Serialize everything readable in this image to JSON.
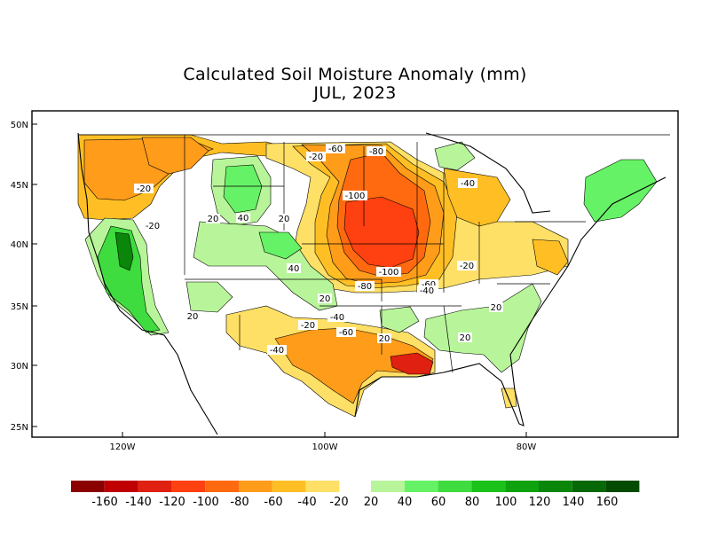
{
  "title": "Calculated Soil Moisture Anomaly (mm)",
  "subtitle": "JUL, 2023",
  "lat_labels": [
    "50N",
    "45N",
    "40N",
    "35N",
    "30N",
    "25N"
  ],
  "lon_labels": [
    "120W",
    "100W",
    "80W"
  ],
  "contour_labels": [
    "-20",
    "-60",
    "-80",
    "-20",
    "-100",
    "-40",
    "-20",
    "20",
    "40",
    "20",
    "-20",
    "-100",
    "-80",
    "-60",
    "-40",
    "40",
    "20",
    "-20",
    "-40",
    "-60",
    "-40",
    "20",
    "20",
    "20",
    "20"
  ],
  "colorbar": {
    "labels": [
      "-160",
      "-140",
      "-120",
      "-100",
      "-80",
      "-60",
      "-40",
      "-20",
      "20",
      "40",
      "60",
      "80",
      "100",
      "120",
      "140",
      "160"
    ],
    "dry_colors": [
      "#8b0000",
      "#c00000",
      "#e02010",
      "#ff4010",
      "#ff6a10",
      "#ff9c1a",
      "#ffbf24",
      "#ffe066"
    ],
    "wet_colors": [
      "#b8f59a",
      "#66f266",
      "#3fdc3f",
      "#1ac21a",
      "#0ea20e",
      "#0a860a",
      "#066806",
      "#034a03"
    ]
  }
}
